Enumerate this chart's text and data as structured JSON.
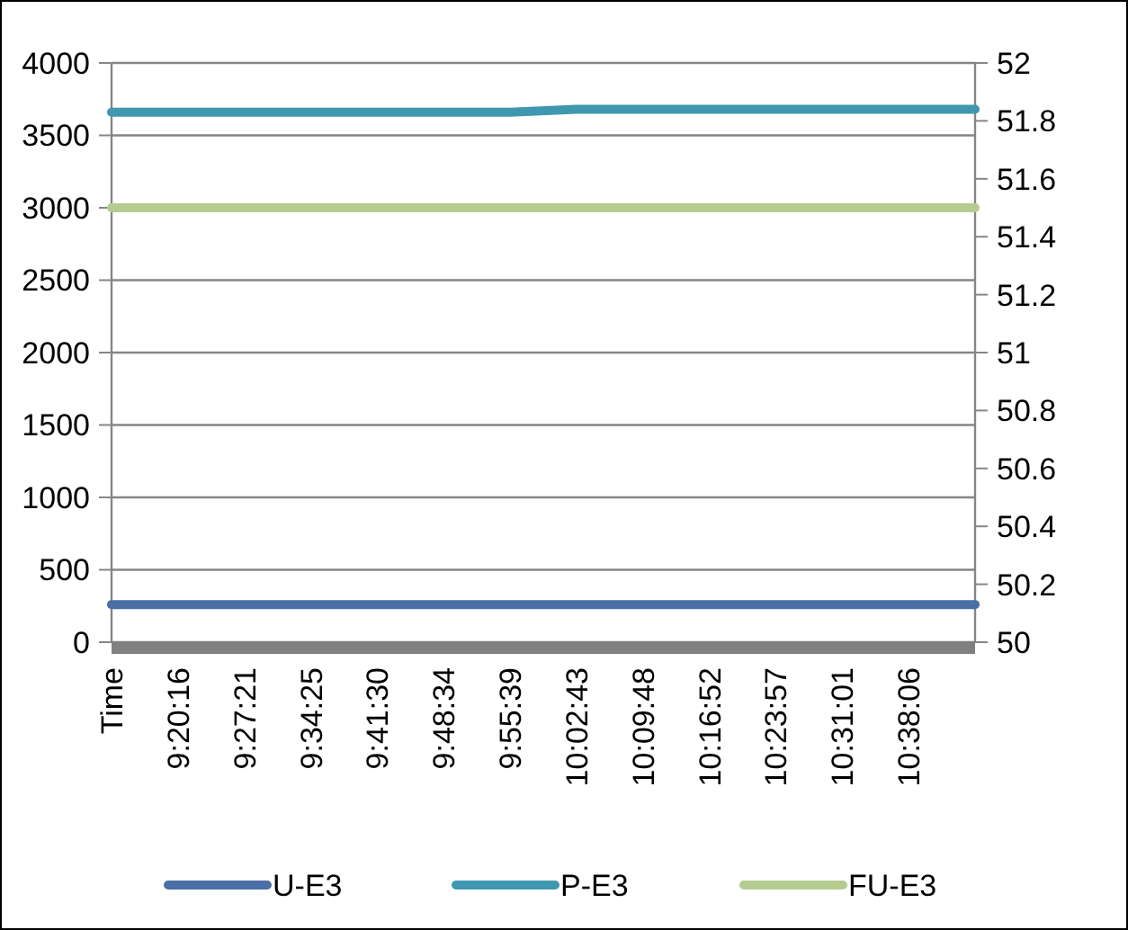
{
  "chart_data": {
    "type": "line",
    "categories": [
      "Time",
      "9:20:16",
      "9:27:21",
      "9:34:25",
      "9:41:30",
      "9:48:34",
      "9:55:39",
      "10:02:43",
      "10:09:48",
      "10:16:52",
      "10:23:57",
      "10:31:01",
      "10:38:06",
      null
    ],
    "series": [
      {
        "name": "U-E3",
        "color": "#4a6fa5",
        "values": [
          260,
          260,
          260,
          260,
          260,
          260,
          260,
          260,
          260,
          260,
          260,
          260,
          260,
          260
        ]
      },
      {
        "name": "P-E3",
        "color": "#3f97b0",
        "values": [
          3660,
          3660,
          3660,
          3660,
          3660,
          3660,
          3660,
          3680,
          3680,
          3680,
          3680,
          3680,
          3680,
          3680
        ]
      },
      {
        "name": "FU-E3",
        "color": "#b5cc91",
        "axis": "y2",
        "values": [
          51.5,
          51.5,
          51.5,
          51.5,
          51.5,
          51.5,
          51.5,
          51.5,
          51.5,
          51.5,
          51.5,
          51.5,
          51.5,
          51.5
        ]
      }
    ],
    "ylim": [
      0,
      4000
    ],
    "yticks": [
      0,
      500,
      1000,
      1500,
      2000,
      2500,
      3000,
      3500,
      4000
    ],
    "y2lim": [
      50,
      52
    ],
    "y2ticks": [
      50,
      50.2,
      50.4,
      50.6,
      50.8,
      51,
      51.2,
      51.4,
      51.6,
      51.8,
      52
    ],
    "grid": "y",
    "legend": "bottom",
    "marker": "none",
    "line_style": "solid"
  }
}
